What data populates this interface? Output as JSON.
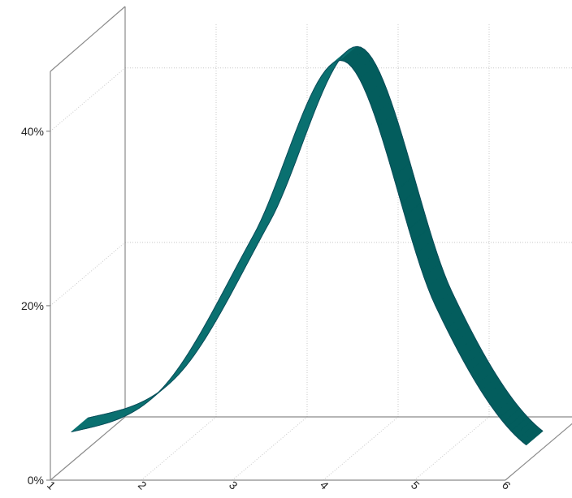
{
  "chart_data": {
    "type": "area",
    "variant": "3d-ribbon",
    "categories": [
      "1",
      "2",
      "3",
      "4",
      "5",
      "6"
    ],
    "series": [
      {
        "values": [
          3.5,
          8.5,
          26,
          46,
          18,
          2
        ],
        "color": "#006a6a"
      }
    ],
    "ylim": [
      0,
      45
    ],
    "yticks": [
      0,
      20,
      40
    ],
    "ytick_labels": [
      "0%",
      "20%",
      "40%"
    ],
    "grid": true,
    "title": "",
    "xlabel": "",
    "ylabel": ""
  }
}
